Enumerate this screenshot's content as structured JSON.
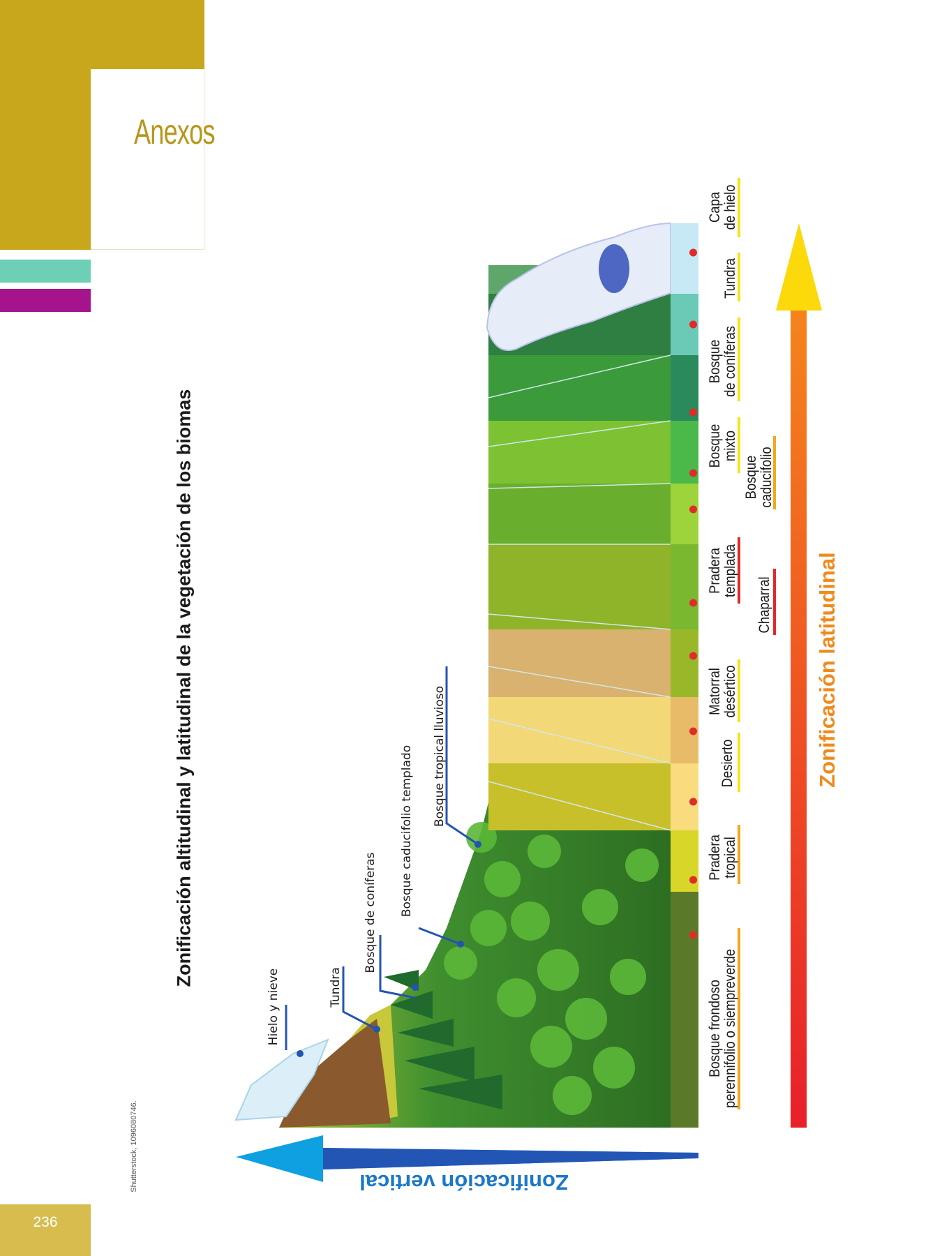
{
  "section": {
    "title": "Anexos",
    "page_number": "236"
  },
  "colors": {
    "gold": "#c9a71c",
    "teal": "#6dcfb5",
    "magenta": "#a5148d",
    "page_tab": "#d6bd4e",
    "latitudinal_text": "#f08a1c",
    "vertical_text": "#1b78c8"
  },
  "credit": "Shutterstock, 1096080746.",
  "figure": {
    "title": "Zonificación altitudinal y latitudinal de la vegetación de los biomas",
    "latitudinal_axis": "Zonificación latitudinal",
    "vertical_axis": "Zonificación vertical",
    "vertical_labels": [
      "Hielo y nieve",
      "Tundra",
      "Bosque de coníferas",
      "Bosque caducifolio templado",
      "Bosque tropical lluvioso"
    ],
    "latitudinal_labels": [
      {
        "l1": "Capa",
        "l2": "de hielo"
      },
      {
        "l1": "",
        "l2": "Tundra"
      },
      {
        "l1": "Bosque",
        "l2": "de coníferas"
      },
      {
        "l1": "Bosque",
        "l2": "mixto"
      },
      {
        "l1": "Bosque",
        "l2": "caducifolio"
      },
      {
        "l1": "Pradera",
        "l2": "templada"
      },
      {
        "l1": "",
        "l2": "Chaparral"
      },
      {
        "l1": "Matorral",
        "l2": "desértico"
      },
      {
        "l1": "",
        "l2": "Desierto"
      },
      {
        "l1": "Pradera",
        "l2": "tropical"
      },
      {
        "l1": "Bosque frondoso",
        "l2": "perennifolio o siempreverde"
      }
    ]
  }
}
